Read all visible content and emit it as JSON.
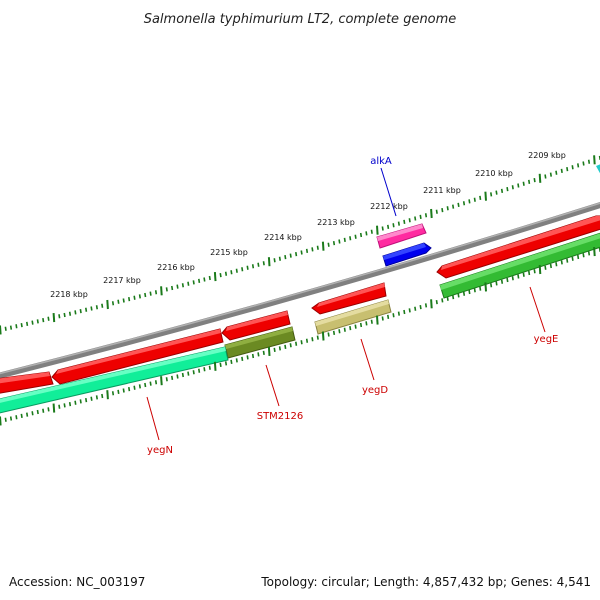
{
  "title": "Salmonella typhimurium LT2, complete genome",
  "footer": {
    "accession": "Accession: NC_003197",
    "summary": "Topology: circular; Length: 4,857,432 bp; Genes: 4,541"
  },
  "ruler": {
    "labels": [
      "2209 kbp",
      "2210 kbp",
      "2211 kbp",
      "2212 kbp",
      "2213 kbp",
      "2214 kbp",
      "2215 kbp",
      "2216 kbp",
      "2217 kbp",
      "2218 kbp"
    ]
  },
  "gene_labels": [
    {
      "text": "alkA",
      "color": "#0000cc"
    },
    {
      "text": "yegE",
      "color": "#cc0000"
    },
    {
      "text": "yegD",
      "color": "#cc0000"
    },
    {
      "text": "STM2126",
      "color": "#cc0000"
    },
    {
      "text": "yegN",
      "color": "#cc0000"
    }
  ],
  "colors": {
    "backbone": "#808080",
    "ruler_tick": "#1a7a1a",
    "cds_forward": "#ee0000",
    "rna_forward": "#ff2aa0",
    "cds_reverse": "#0000ee",
    "yegE_bar": "#33bb33",
    "yegD_bar": "#c8bf70",
    "STM2126_bar": "#6b8a22",
    "yegN_bar": "#11ee99",
    "edge_feature": "#22cccc"
  }
}
